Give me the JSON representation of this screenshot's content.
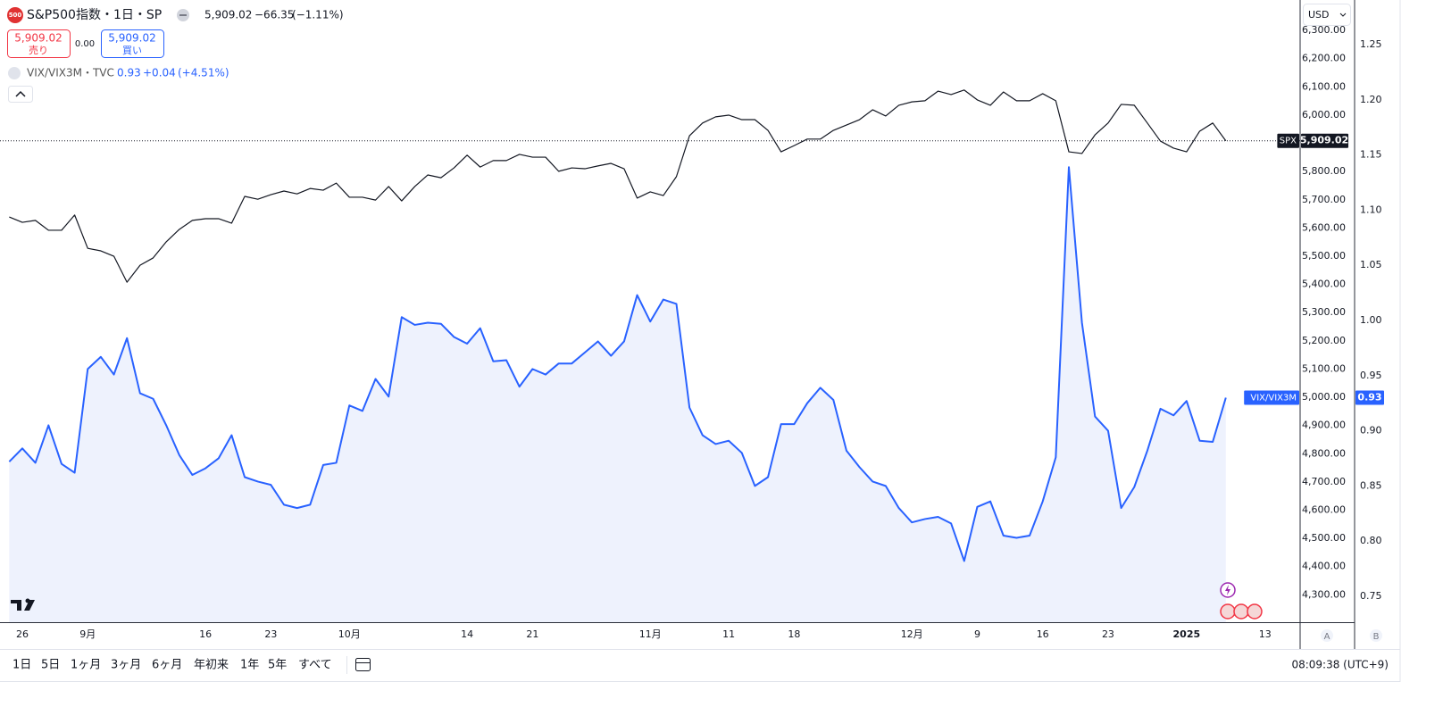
{
  "header": {
    "icon": "500",
    "title": "S&P500指数・1日・SP",
    "price": "5,909.02",
    "change": "−66.35",
    "change_percent": "(−1.11%)",
    "sell_price": "5,909.02",
    "sell_label": "売り",
    "spread": "0.00",
    "buy_price": "5,909.02",
    "buy_label": "買い",
    "study_title": "VIX/VIX3M・TVC",
    "study_value": "0.93",
    "study_change": "+0.04",
    "study_change_percent": "(+4.51%)",
    "currency": "USD",
    "scale_a": "A",
    "scale_b": "B"
  },
  "toolbar": {
    "ranges": [
      "1日",
      "5日",
      "1ヶ月",
      "3ヶ月",
      "6ヶ月",
      "年初来",
      "1年",
      "5年",
      "すべて"
    ],
    "clock": "08:09:38 (UTC+9)"
  },
  "chart_data": {
    "type": "line",
    "categories": [
      null,
      "26",
      null,
      null,
      null,
      null,
      "9月",
      null,
      null,
      null,
      null,
      null,
      null,
      null,
      null,
      "16",
      null,
      null,
      null,
      null,
      "23",
      null,
      null,
      null,
      null,
      null,
      "10月",
      null,
      null,
      null,
      null,
      null,
      null,
      null,
      null,
      "14",
      null,
      null,
      null,
      null,
      "21",
      null,
      null,
      null,
      null,
      null,
      null,
      null,
      null,
      "11月",
      null,
      null,
      null,
      null,
      null,
      "11",
      null,
      null,
      null,
      null,
      "18",
      null,
      null,
      null,
      null,
      null,
      null,
      null,
      null,
      "12月",
      null,
      null,
      null,
      null,
      "9",
      null,
      null,
      null,
      null,
      "16",
      null,
      null,
      null,
      null,
      "23",
      null,
      null,
      null,
      null,
      null,
      "2025",
      null,
      null,
      null,
      null,
      null,
      "13"
    ],
    "series": [
      {
        "name": "SPX",
        "color": "#131722",
        "axis": "y",
        "last_line": true,
        "values": [
          5639,
          5620,
          5627,
          5592,
          5592,
          5646,
          5528,
          5519,
          5500,
          5408,
          5468,
          5494,
          5551,
          5595,
          5627,
          5633,
          5633,
          5617,
          5712,
          5702,
          5718,
          5731,
          5721,
          5740,
          5734,
          5759,
          5709,
          5709,
          5699,
          5747,
          5696,
          5747,
          5788,
          5778,
          5813,
          5858,
          5816,
          5839,
          5839,
          5861,
          5851,
          5851,
          5801,
          5813,
          5810,
          5820,
          5829,
          5810,
          5706,
          5728,
          5715,
          5782,
          5927,
          5972,
          5994,
          6000,
          5984,
          5984,
          5946,
          5870,
          5892,
          5915,
          5915,
          5946,
          5965,
          5984,
          6019,
          5997,
          6035,
          6047,
          6051,
          6085,
          6073,
          6089,
          6054,
          6035,
          6082,
          6051,
          6051,
          6076,
          6051,
          5870,
          5864,
          5930,
          5972,
          6038,
          6035,
          5972,
          5908,
          5883,
          5870,
          5943,
          5972,
          5909.02,
          null,
          null,
          null
        ],
        "value_labels": [
          null,
          null,
          null,
          null,
          null,
          null,
          null,
          null,
          null,
          null,
          null,
          null,
          null,
          null,
          null,
          null,
          null,
          null,
          null,
          null,
          null,
          null,
          null,
          null,
          null,
          null,
          null,
          null,
          null,
          null,
          null,
          null,
          null,
          null,
          null,
          null,
          null,
          null,
          null,
          null,
          null,
          null,
          null,
          null,
          null,
          null,
          null,
          null,
          null,
          null,
          null,
          null,
          null,
          null,
          null,
          null,
          null,
          null,
          null,
          null,
          null,
          null,
          null,
          null,
          null,
          null,
          null,
          null,
          null,
          null,
          null,
          null,
          null,
          null,
          null,
          null,
          null,
          null,
          null,
          null,
          null,
          null,
          null,
          null,
          null,
          null,
          null,
          null,
          null,
          null,
          null,
          null,
          null,
          "5,909.02",
          null,
          null,
          null
        ]
      },
      {
        "name": "VIX/VIX3M",
        "color": "#2962ff",
        "axis": "y2",
        "area_color": "#eef2fd",
        "values": [
          0.872,
          0.884,
          0.871,
          0.905,
          0.87,
          0.862,
          0.956,
          0.967,
          0.951,
          0.984,
          0.934,
          0.929,
          0.905,
          0.878,
          0.86,
          0.866,
          0.875,
          0.896,
          0.858,
          0.854,
          0.851,
          0.833,
          0.83,
          0.833,
          0.869,
          0.871,
          0.923,
          0.918,
          0.947,
          0.931,
          1.003,
          0.996,
          0.998,
          0.997,
          0.985,
          0.979,
          0.993,
          0.963,
          0.964,
          0.94,
          0.956,
          0.951,
          0.961,
          0.961,
          0.971,
          0.981,
          0.968,
          0.981,
          1.023,
          0.999,
          1.019,
          1.015,
          0.921,
          0.896,
          0.888,
          0.891,
          0.88,
          0.85,
          0.858,
          0.906,
          0.906,
          0.925,
          0.939,
          0.928,
          0.882,
          0.867,
          0.854,
          0.85,
          0.83,
          0.817,
          0.82,
          0.822,
          0.816,
          0.782,
          0.831,
          0.836,
          0.805,
          0.803,
          0.805,
          0.836,
          0.876,
          1.139,
          0.998,
          0.913,
          0.9,
          0.83,
          0.849,
          0.882,
          0.92,
          0.914,
          0.927,
          0.891,
          0.89,
          0.93,
          null,
          null,
          null
        ]
      }
    ],
    "ylim": [
      4203,
      6408
    ],
    "yticks": [
      {
        "value": 6300,
        "label": "6,300.00"
      },
      {
        "value": 6200,
        "label": "6,200.00"
      },
      {
        "value": 6100,
        "label": "6,100.00"
      },
      {
        "value": 6000,
        "label": "6,000.00"
      },
      {
        "value": 5800,
        "label": "5,800.00"
      },
      {
        "value": 5700,
        "label": "5,700.00"
      },
      {
        "value": 5600,
        "label": "5,600.00"
      },
      {
        "value": 5500,
        "label": "5,500.00"
      },
      {
        "value": 5400,
        "label": "5,400.00"
      },
      {
        "value": 5300,
        "label": "5,300.00"
      },
      {
        "value": 5200,
        "label": "5,200.00"
      },
      {
        "value": 5100,
        "label": "5,100.00"
      },
      {
        "value": 5000,
        "label": "5,000.00"
      },
      {
        "value": 4900,
        "label": "4,900.00"
      },
      {
        "value": 4800,
        "label": "4,800.00"
      },
      {
        "value": 4700,
        "label": "4,700.00"
      },
      {
        "value": 4600,
        "label": "4,600.00"
      },
      {
        "value": 4500,
        "label": "4,500.00"
      },
      {
        "value": 4400,
        "label": "4,400.00"
      },
      {
        "value": 4300,
        "label": "4,300.00"
      }
    ],
    "y2lim": [
      0.7265,
      1.2905
    ],
    "y2ticks": [
      1.25,
      {
        "value": 1.2,
        "label": "1.20"
      },
      1.15,
      {
        "value": 1.1,
        "label": "1.10"
      },
      1.05,
      {
        "value": 1,
        "label": "1.00"
      },
      0.95,
      {
        "value": 0.9,
        "label": "0.90"
      },
      0.85,
      {
        "value": 0.8,
        "label": "0.80"
      },
      0.75
    ],
    "grid": false
  }
}
